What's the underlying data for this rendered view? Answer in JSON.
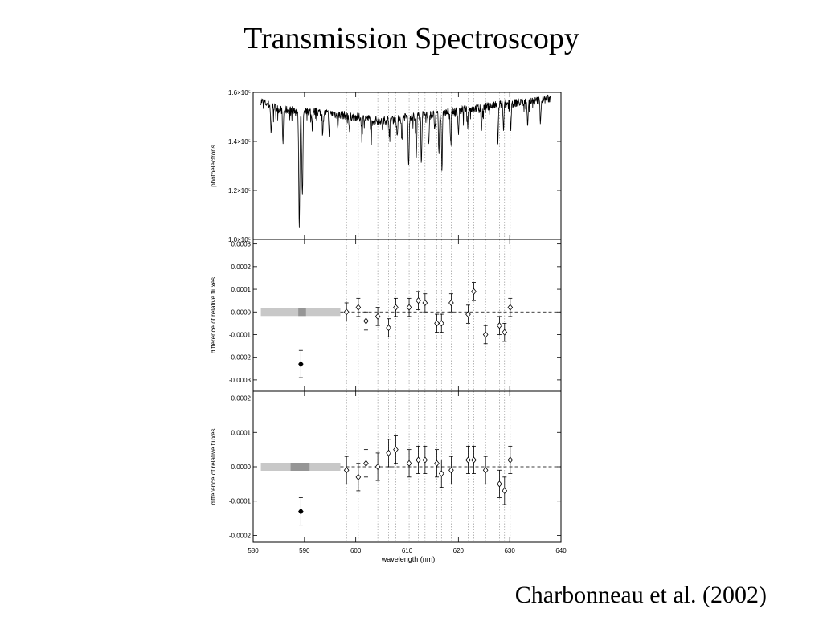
{
  "slide": {
    "title": "Transmission Spectroscopy",
    "citation": "Charbonneau et al. (2002)"
  },
  "chart_data": [
    {
      "type": "line",
      "panel": "spectrum",
      "xlabel": "wavelength (nm)",
      "ylabel": "photoelectrons",
      "xlim": [
        580,
        640
      ],
      "ylim": [
        100000,
        160000
      ],
      "x_ticks": [
        "580",
        "590",
        "600",
        "610",
        "620",
        "630",
        "640"
      ],
      "y_ticks": [
        "1.0×10⁵",
        "1.2×10⁵",
        "1.4×10⁵",
        "1.6×10⁵"
      ],
      "y_tick_values": [
        100000,
        120000,
        140000,
        160000
      ],
      "continuum": [
        [
          581.5,
          156500
        ],
        [
          585,
          153000
        ],
        [
          590,
          152500
        ],
        [
          595,
          151500
        ],
        [
          600,
          150000
        ],
        [
          605,
          148500
        ],
        [
          610,
          150000
        ],
        [
          615,
          151000
        ],
        [
          620,
          152500
        ],
        [
          625,
          154000
        ],
        [
          630,
          155500
        ],
        [
          635,
          156500
        ],
        [
          638,
          157500
        ]
      ],
      "absorption_lines": [
        [
          583.5,
          143000
        ],
        [
          585.8,
          139000
        ],
        [
          588.99,
          104500
        ],
        [
          589.59,
          117000
        ],
        [
          591.5,
          146000
        ],
        [
          593.6,
          145000
        ],
        [
          594.8,
          143500
        ],
        [
          596.5,
          146500
        ],
        [
          598.8,
          144000
        ],
        [
          601.2,
          143500
        ],
        [
          603.0,
          141000
        ],
        [
          605.2,
          145000
        ],
        [
          606.6,
          144500
        ],
        [
          608.1,
          142000
        ],
        [
          609.0,
          140000
        ],
        [
          610.3,
          129500
        ],
        [
          611.8,
          133000
        ],
        [
          612.8,
          131000
        ],
        [
          614.2,
          139000
        ],
        [
          615.4,
          145000
        ],
        [
          616.2,
          135000
        ],
        [
          616.8,
          128500
        ],
        [
          618.5,
          140000
        ],
        [
          620.0,
          143000
        ],
        [
          621.8,
          146500
        ],
        [
          624.5,
          145000
        ],
        [
          627.7,
          140000
        ],
        [
          628.8,
          144000
        ],
        [
          630.2,
          145000
        ],
        [
          633.5,
          147000
        ],
        [
          636.0,
          148000
        ]
      ],
      "reference_lines": [
        589.3,
        598.2,
        600.5,
        602.0,
        604.3,
        606.4,
        607.8,
        610.4,
        612.2,
        613.5,
        615.8,
        616.7,
        618.6,
        621.9,
        623.0,
        625.3,
        628.0,
        629.0,
        630.1
      ]
    },
    {
      "type": "scatter",
      "panel": "difference-1",
      "ylabel": "difference of relative fluxes",
      "xlim": [
        580,
        640
      ],
      "ylim": [
        -0.00035,
        0.00032
      ],
      "y_ticks": [
        "0.0003",
        "0.0002",
        "0.0001",
        "0.0000",
        "-0.0001",
        "-0.0002",
        "-0.0003"
      ],
      "y_tick_values": [
        0.0003,
        0.0002,
        0.0001,
        0.0,
        -0.0001,
        -0.0002,
        -0.0003
      ],
      "x": [
        598.2,
        600.5,
        602.0,
        604.3,
        606.4,
        607.8,
        610.4,
        612.2,
        613.5,
        615.8,
        616.7,
        618.6,
        621.9,
        623.0,
        625.3,
        628.0,
        629.0,
        630.1
      ],
      "y": [
        0.0,
        2e-05,
        -4e-05,
        -2e-05,
        -7e-05,
        2e-05,
        2e-05,
        5e-05,
        4e-05,
        -5e-05,
        -5e-05,
        4e-05,
        -1e-05,
        9e-05,
        -0.0001,
        -6e-05,
        -9e-05,
        2e-05
      ],
      "yerr": 4e-05,
      "highlight": {
        "x": 589.3,
        "y": -0.00023,
        "yerr": 6e-05
      },
      "band": {
        "x_range": [
          581.5,
          597
        ],
        "dark_range": [
          588.8,
          590.3
        ]
      }
    },
    {
      "type": "scatter",
      "panel": "difference-2",
      "xlabel": "wavelength (nm)",
      "ylabel": "difference of relative fluxes",
      "xlim": [
        580,
        640
      ],
      "ylim": [
        -0.00022,
        0.00022
      ],
      "y_ticks": [
        "0.0002",
        "0.0001",
        "0.0000",
        "-0.0001",
        "-0.0002"
      ],
      "y_tick_values": [
        0.0002,
        0.0001,
        0.0,
        -0.0001,
        -0.0002
      ],
      "x": [
        598.2,
        600.5,
        602.0,
        604.3,
        606.4,
        607.8,
        610.4,
        612.2,
        613.5,
        615.8,
        616.7,
        618.6,
        621.9,
        623.0,
        625.3,
        628.0,
        629.0,
        630.1
      ],
      "y": [
        -1e-05,
        -3e-05,
        1e-05,
        0.0,
        4e-05,
        5e-05,
        1e-05,
        2e-05,
        2e-05,
        1e-05,
        -2e-05,
        -1e-05,
        2e-05,
        2e-05,
        -1e-05,
        -5e-05,
        -7e-05,
        2e-05
      ],
      "yerr": 4e-05,
      "highlight": {
        "x": 589.3,
        "y": -0.00013,
        "yerr": 4e-05
      },
      "band": {
        "x_range": [
          581.5,
          597
        ],
        "dark_range": [
          587.3,
          591.0
        ]
      }
    }
  ]
}
